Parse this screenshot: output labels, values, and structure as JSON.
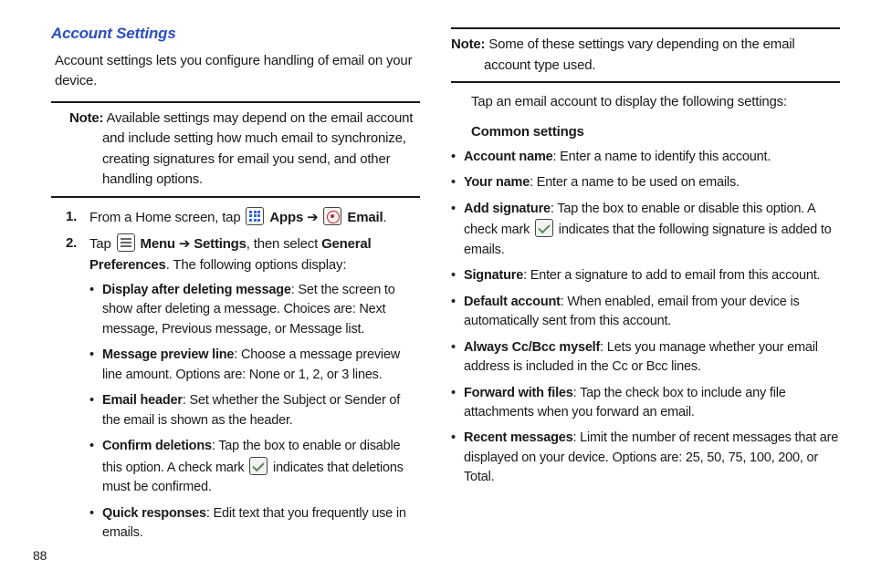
{
  "left": {
    "title": "Account Settings",
    "intro": "Account settings lets you configure handling of email on your device.",
    "note_label": "Note:",
    "note_body": "Available settings may depend on the email account and include setting how much email to synchronize, creating signatures for email you send, and other handling options.",
    "step1": {
      "pre": "From a Home screen, tap",
      "apps": "Apps",
      "arrow": "➔",
      "email": "Email",
      "period": "."
    },
    "step2": {
      "pre": "Tap",
      "menu": "Menu",
      "arrow": "➔",
      "settings": "Settings",
      "mid": ", then select",
      "gp": "General Preferences",
      "post": ". The following options display:"
    },
    "bullets": [
      {
        "t": "Display after deleting message",
        "d": ": Set the screen to show after deleting a message. Choices are: Next message, Previous message, or Message list."
      },
      {
        "t": "Message preview line",
        "d": ": Choose a message preview line amount. Options are: None or 1, 2, or 3 lines."
      },
      {
        "t": "Email header",
        "d": ": Set whether the Subject or Sender of the email is shown as the header."
      },
      {
        "t": "Confirm deletions",
        "d_pre": ": Tap the box to enable or disable this option. A check mark ",
        "d_post": " indicates that deletions must be confirmed."
      },
      {
        "t": "Quick responses",
        "d": ": Edit text that you frequently use in emails."
      }
    ]
  },
  "right": {
    "note_label": "Note:",
    "note_body": "Some of these settings vary depending on the email account type used.",
    "lead": "Tap an email account to display the following settings:",
    "subhead": "Common settings",
    "bullets": [
      {
        "t": "Account name",
        "d": ": Enter a name to identify this account."
      },
      {
        "t": "Your name",
        "d": ": Enter a name to be used on emails."
      },
      {
        "t": "Add signature",
        "d_pre": ": Tap the box to enable or disable this option. A check mark ",
        "d_post": " indicates that the following signature is added to emails."
      },
      {
        "t": "Signature",
        "d": ": Enter a signature to add to email from this account."
      },
      {
        "t": "Default account",
        "d": ": When enabled, email from your device is automatically sent from this account."
      },
      {
        "t": "Always Cc/Bcc myself",
        "d": ": Lets you manage whether your email address is included in the Cc or Bcc lines."
      },
      {
        "t": "Forward with files",
        "d": ": Tap the check box to include any file attachments when you forward an email."
      },
      {
        "t": "Recent messages",
        "d": ": Limit the number of recent messages that are displayed on your device. Options are: 25, 50, 75, 100, 200, or Total."
      }
    ]
  },
  "page_number": "88"
}
